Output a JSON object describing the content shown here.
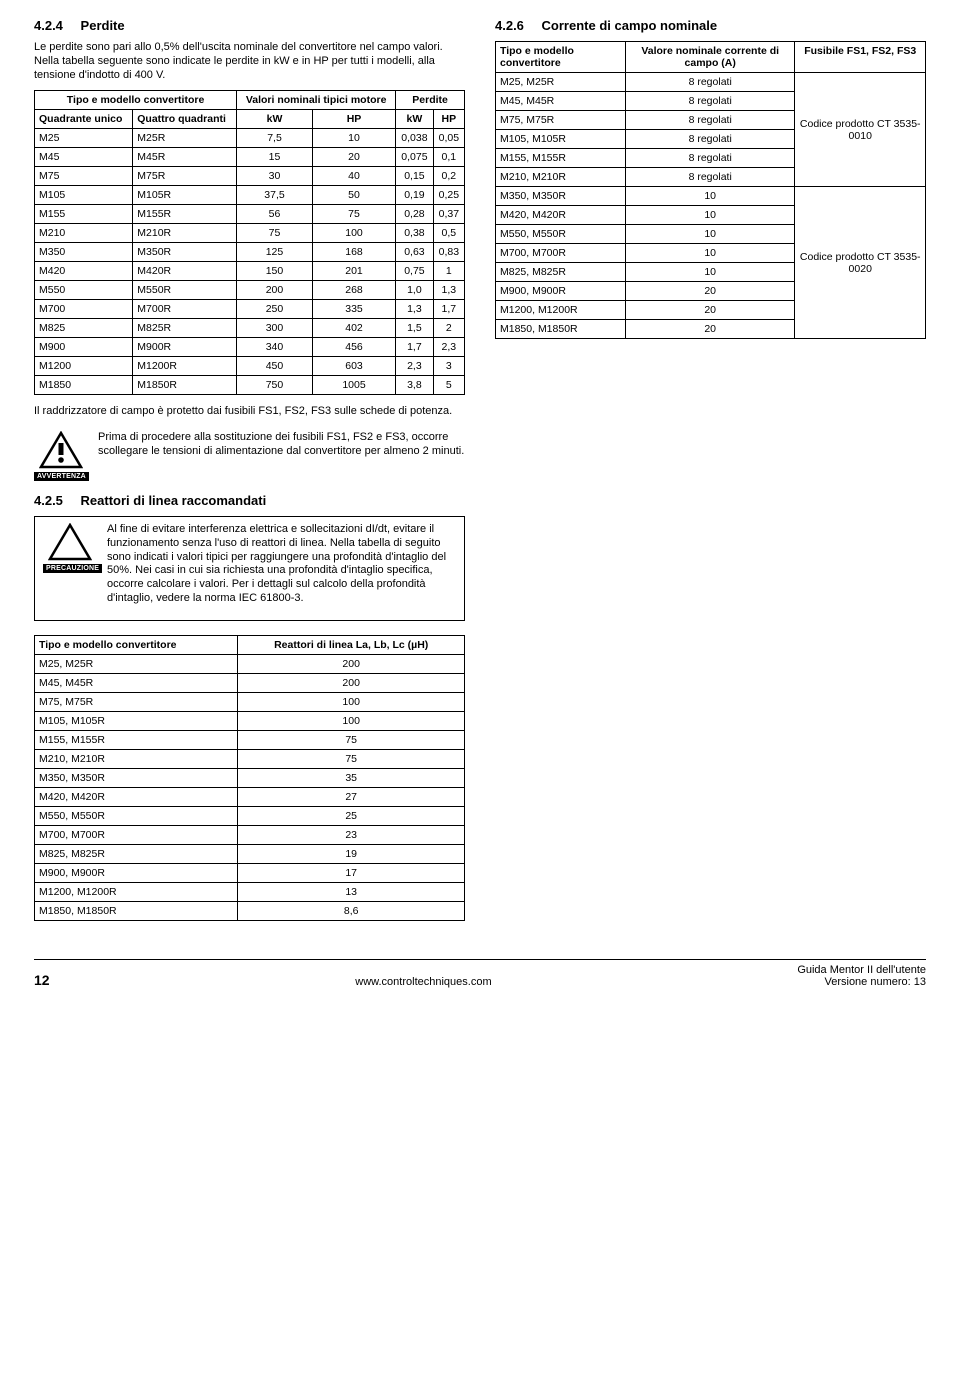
{
  "left": {
    "sec_num": "4.2.4",
    "sec_title": "Perdite",
    "intro": "Le perdite sono pari allo 0,5% dell'uscita nominale del convertitore nel campo valori. Nella tabella seguente sono indicate le perdite in kW e in HP per tutti i modelli, alla tensione d'indotto di 400 V.",
    "th_tipo": "Tipo e modello convertitore",
    "th_valori": "Valori nominali tipici motore",
    "th_perdite": "Perdite",
    "th_quadrante": "Quadrante unico",
    "th_quattro": "Quattro quadranti",
    "th_kw": "kW",
    "th_hp": "HP",
    "rows": [
      {
        "a": "M25",
        "b": "M25R",
        "c": "7,5",
        "d": "10",
        "e": "0,038",
        "f": "0,05"
      },
      {
        "a": "M45",
        "b": "M45R",
        "c": "15",
        "d": "20",
        "e": "0,075",
        "f": "0,1"
      },
      {
        "a": "M75",
        "b": "M75R",
        "c": "30",
        "d": "40",
        "e": "0,15",
        "f": "0,2"
      },
      {
        "a": "M105",
        "b": "M105R",
        "c": "37,5",
        "d": "50",
        "e": "0,19",
        "f": "0,25"
      },
      {
        "a": "M155",
        "b": "M155R",
        "c": "56",
        "d": "75",
        "e": "0,28",
        "f": "0,37"
      },
      {
        "a": "M210",
        "b": "M210R",
        "c": "75",
        "d": "100",
        "e": "0,38",
        "f": "0,5"
      },
      {
        "a": "M350",
        "b": "M350R",
        "c": "125",
        "d": "168",
        "e": "0,63",
        "f": "0,83"
      },
      {
        "a": "M420",
        "b": "M420R",
        "c": "150",
        "d": "201",
        "e": "0,75",
        "f": "1"
      },
      {
        "a": "M550",
        "b": "M550R",
        "c": "200",
        "d": "268",
        "e": "1,0",
        "f": "1,3"
      },
      {
        "a": "M700",
        "b": "M700R",
        "c": "250",
        "d": "335",
        "e": "1,3",
        "f": "1,7"
      },
      {
        "a": "M825",
        "b": "M825R",
        "c": "300",
        "d": "402",
        "e": "1,5",
        "f": "2"
      },
      {
        "a": "M900",
        "b": "M900R",
        "c": "340",
        "d": "456",
        "e": "1,7",
        "f": "2,3"
      },
      {
        "a": "M1200",
        "b": "M1200R",
        "c": "450",
        "d": "603",
        "e": "2,3",
        "f": "3"
      },
      {
        "a": "M1850",
        "b": "M1850R",
        "c": "750",
        "d": "1005",
        "e": "3,8",
        "f": "5"
      }
    ],
    "note": "Il raddrizzatore di campo è protetto dai fusibili FS1, FS2, FS3 sulle schede di potenza.",
    "warn_label": "AVVERTENZA",
    "warn_text": "Prima di procedere alla sostituzione dei fusibili FS1, FS2 e FS3, occorre scollegare le tensioni di alimentazione dal convertitore per almeno 2 minuti.",
    "sec5_num": "4.2.5",
    "sec5_title": "Reattori di linea raccomandati",
    "caution_label": "PRECAUZIONE",
    "caution_text": "Al fine di evitare interferenza elettrica e sollecitazioni dI/dt, evitare il funzionamento senza l'uso di reattori di linea. Nella tabella di seguito sono indicati i valori tipici per raggiungere una profondità d'intaglio del 50%. Nei casi in cui sia richiesta una profondità d'intaglio specifica, occorre calcolare i valori. Per i dettagli sul calcolo della profondità d'intaglio, vedere la norma IEC 61800-3.",
    "react_th1": "Tipo e modello convertitore",
    "react_th2": "Reattori di linea La, Lb, Lc (µH)",
    "react_rows": [
      {
        "a": "M25, M25R",
        "b": "200"
      },
      {
        "a": "M45, M45R",
        "b": "200"
      },
      {
        "a": "M75, M75R",
        "b": "100"
      },
      {
        "a": "M105, M105R",
        "b": "100"
      },
      {
        "a": "M155, M155R",
        "b": "75"
      },
      {
        "a": "M210, M210R",
        "b": "75"
      },
      {
        "a": "M350, M350R",
        "b": "35"
      },
      {
        "a": "M420, M420R",
        "b": "27"
      },
      {
        "a": "M550, M550R",
        "b": "25"
      },
      {
        "a": "M700, M700R",
        "b": "23"
      },
      {
        "a": "M825, M825R",
        "b": "19"
      },
      {
        "a": "M900, M900R",
        "b": "17"
      },
      {
        "a": "M1200, M1200R",
        "b": "13"
      },
      {
        "a": "M1850, M1850R",
        "b": "8,6"
      }
    ]
  },
  "right": {
    "sec_num": "4.2.6",
    "sec_title": "Corrente di campo nominale",
    "th_tipo": "Tipo e modello convertitore",
    "th_valore": "Valore nominale corrente di campo (A)",
    "th_fusibile": "Fusibile FS1, FS2, FS3",
    "group1_code": "Codice prodotto CT 3535-0010",
    "group2_code": "Codice prodotto CT 3535-0020",
    "rows1": [
      {
        "a": "M25, M25R",
        "b": "8 regolati"
      },
      {
        "a": "M45, M45R",
        "b": "8 regolati"
      },
      {
        "a": "M75, M75R",
        "b": "8 regolati"
      },
      {
        "a": "M105, M105R",
        "b": "8 regolati"
      },
      {
        "a": "M155, M155R",
        "b": "8 regolati"
      },
      {
        "a": "M210, M210R",
        "b": "8 regolati"
      }
    ],
    "rows2": [
      {
        "a": "M350, M350R",
        "b": "10"
      },
      {
        "a": "M420, M420R",
        "b": "10"
      },
      {
        "a": "M550, M550R",
        "b": "10"
      },
      {
        "a": "M700, M700R",
        "b": "10"
      },
      {
        "a": "M825, M825R",
        "b": "10"
      },
      {
        "a": "M900, M900R",
        "b": "20"
      },
      {
        "a": "M1200, M1200R",
        "b": "20"
      },
      {
        "a": "M1850, M1850R",
        "b": "20"
      }
    ]
  },
  "footer": {
    "page": "12",
    "url": "www.controltechniques.com",
    "guide": "Guida Mentor II dell'utente",
    "version": "Versione numero: 13"
  }
}
